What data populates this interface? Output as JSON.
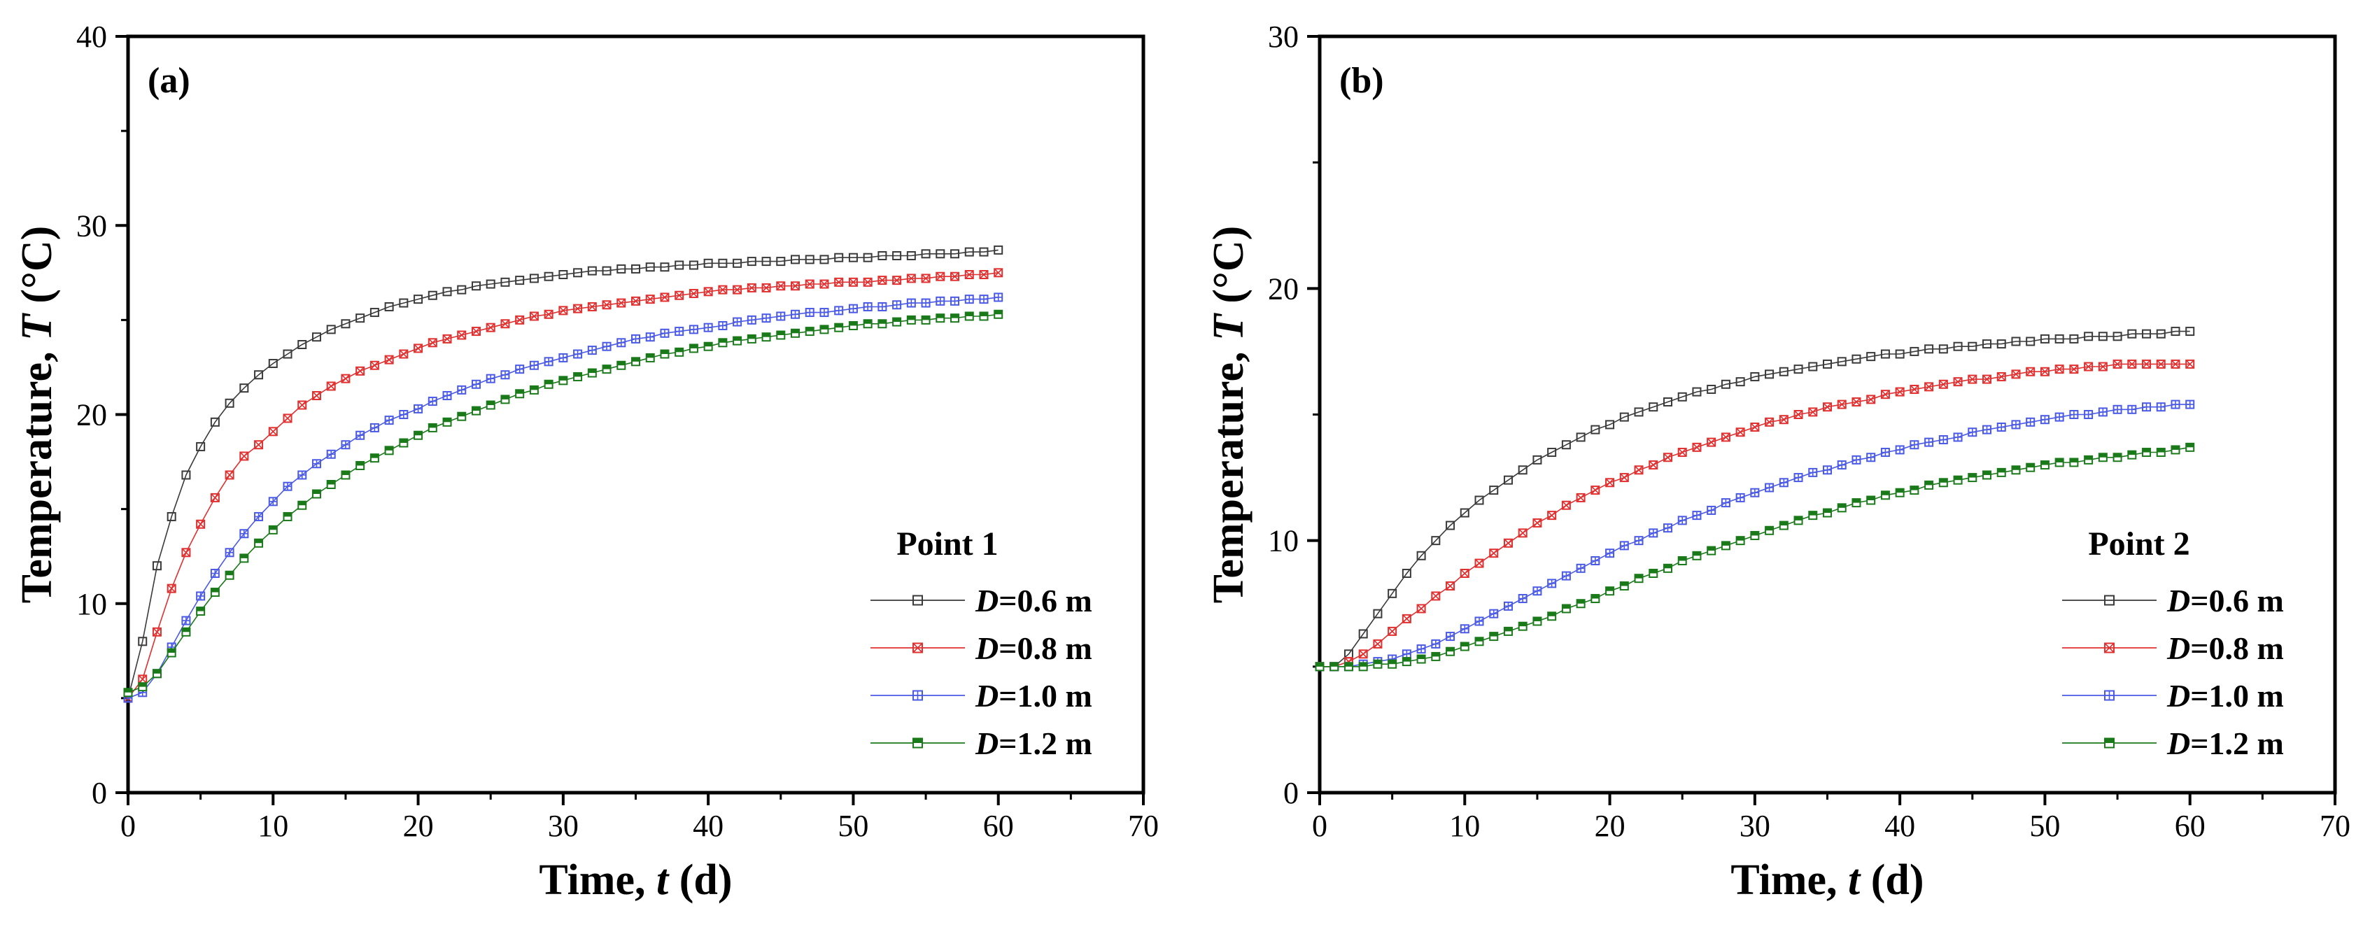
{
  "chart_data": [
    {
      "type": "line",
      "panel_label": "(a)",
      "xlabel": {
        "text": "Time, ",
        "var": "t",
        "unit": " (d)"
      },
      "ylabel": {
        "text": "Temperature, ",
        "var": "T",
        "unit": " (°C)"
      },
      "xlim": [
        0,
        70
      ],
      "ylim": [
        0,
        40
      ],
      "x_ticks": [
        0,
        10,
        20,
        30,
        40,
        50,
        60,
        70
      ],
      "y_ticks": [
        0,
        10,
        20,
        30,
        40
      ],
      "legend_title": "Point 1",
      "legend_position": "bottom-right",
      "x": [
        0,
        1,
        2,
        3,
        4,
        5,
        6,
        7,
        8,
        9,
        10,
        11,
        12,
        13,
        14,
        15,
        16,
        17,
        18,
        19,
        20,
        21,
        22,
        23,
        24,
        25,
        26,
        27,
        28,
        29,
        30,
        31,
        32,
        33,
        34,
        35,
        36,
        37,
        38,
        39,
        40,
        41,
        42,
        43,
        44,
        45,
        46,
        47,
        48,
        49,
        50,
        51,
        52,
        53,
        54,
        55,
        56,
        57,
        58,
        59,
        60
      ],
      "series": [
        {
          "name": "D=0.6 m",
          "var": "D",
          "value_text": "=0.6 m",
          "marker": "square",
          "color": "#3a3a3a",
          "values": [
            5.0,
            8.0,
            12.0,
            14.6,
            16.8,
            18.3,
            19.6,
            20.6,
            21.4,
            22.1,
            22.7,
            23.2,
            23.7,
            24.1,
            24.5,
            24.8,
            25.1,
            25.4,
            25.7,
            25.9,
            26.1,
            26.3,
            26.5,
            26.6,
            26.8,
            26.9,
            27.0,
            27.1,
            27.2,
            27.3,
            27.4,
            27.5,
            27.6,
            27.6,
            27.7,
            27.7,
            27.8,
            27.8,
            27.9,
            27.9,
            28.0,
            28.0,
            28.0,
            28.1,
            28.1,
            28.1,
            28.2,
            28.2,
            28.2,
            28.3,
            28.3,
            28.3,
            28.4,
            28.4,
            28.4,
            28.5,
            28.5,
            28.5,
            28.6,
            28.6,
            28.7
          ]
        },
        {
          "name": "D=0.8 m",
          "var": "D",
          "value_text": "=0.8 m",
          "marker": "square-x",
          "color": "#e03030",
          "values": [
            5.0,
            6.0,
            8.5,
            10.8,
            12.7,
            14.2,
            15.6,
            16.8,
            17.8,
            18.4,
            19.1,
            19.8,
            20.5,
            21.0,
            21.5,
            21.9,
            22.3,
            22.6,
            22.9,
            23.2,
            23.5,
            23.8,
            24.0,
            24.2,
            24.4,
            24.6,
            24.8,
            25.0,
            25.2,
            25.3,
            25.5,
            25.6,
            25.7,
            25.8,
            25.9,
            26.0,
            26.1,
            26.2,
            26.3,
            26.4,
            26.5,
            26.6,
            26.6,
            26.7,
            26.7,
            26.8,
            26.8,
            26.9,
            26.9,
            27.0,
            27.0,
            27.0,
            27.1,
            27.1,
            27.2,
            27.2,
            27.3,
            27.3,
            27.4,
            27.4,
            27.5
          ]
        },
        {
          "name": "D=1.0 m",
          "var": "D",
          "value_text": "=1.0 m",
          "marker": "square-plus",
          "color": "#4a5ae6",
          "values": [
            5.0,
            5.3,
            6.3,
            7.7,
            9.1,
            10.4,
            11.6,
            12.7,
            13.7,
            14.6,
            15.4,
            16.2,
            16.8,
            17.4,
            17.9,
            18.4,
            18.9,
            19.3,
            19.7,
            20.0,
            20.3,
            20.7,
            21.0,
            21.3,
            21.6,
            21.9,
            22.1,
            22.4,
            22.6,
            22.8,
            23.0,
            23.2,
            23.4,
            23.6,
            23.8,
            24.0,
            24.1,
            24.3,
            24.4,
            24.5,
            24.6,
            24.7,
            24.9,
            25.0,
            25.1,
            25.2,
            25.3,
            25.4,
            25.4,
            25.5,
            25.6,
            25.7,
            25.7,
            25.8,
            25.9,
            25.9,
            26.0,
            26.0,
            26.1,
            26.1,
            26.2
          ]
        },
        {
          "name": "D=1.2 m",
          "var": "D",
          "value_text": "=1.2 m",
          "marker": "half-square",
          "color": "#1a7a1a",
          "values": [
            5.3,
            5.6,
            6.3,
            7.4,
            8.5,
            9.6,
            10.6,
            11.5,
            12.4,
            13.2,
            13.9,
            14.6,
            15.2,
            15.8,
            16.3,
            16.8,
            17.3,
            17.7,
            18.1,
            18.5,
            18.9,
            19.3,
            19.6,
            19.9,
            20.2,
            20.5,
            20.8,
            21.1,
            21.3,
            21.6,
            21.8,
            22.0,
            22.2,
            22.4,
            22.6,
            22.8,
            23.0,
            23.2,
            23.3,
            23.5,
            23.6,
            23.8,
            23.9,
            24.0,
            24.1,
            24.2,
            24.3,
            24.4,
            24.5,
            24.6,
            24.7,
            24.8,
            24.8,
            24.9,
            25.0,
            25.0,
            25.1,
            25.1,
            25.2,
            25.2,
            25.3
          ]
        }
      ]
    },
    {
      "type": "line",
      "panel_label": "(b)",
      "xlabel": {
        "text": "Time, ",
        "var": "t",
        "unit": " (d)"
      },
      "ylabel": {
        "text": "Temperature, ",
        "var": "T",
        "unit": " (°C)"
      },
      "xlim": [
        0,
        70
      ],
      "ylim": [
        0,
        30
      ],
      "x_ticks": [
        0,
        10,
        20,
        30,
        40,
        50,
        60,
        70
      ],
      "y_ticks": [
        0,
        10,
        20,
        30
      ],
      "legend_title": "Point 2",
      "legend_position": "bottom-right",
      "x": [
        0,
        1,
        2,
        3,
        4,
        5,
        6,
        7,
        8,
        9,
        10,
        11,
        12,
        13,
        14,
        15,
        16,
        17,
        18,
        19,
        20,
        21,
        22,
        23,
        24,
        25,
        26,
        27,
        28,
        29,
        30,
        31,
        32,
        33,
        34,
        35,
        36,
        37,
        38,
        39,
        40,
        41,
        42,
        43,
        44,
        45,
        46,
        47,
        48,
        49,
        50,
        51,
        52,
        53,
        54,
        55,
        56,
        57,
        58,
        59,
        60
      ],
      "series": [
        {
          "name": "D=0.6 m",
          "var": "D",
          "value_text": "=0.6 m",
          "marker": "square",
          "color": "#3a3a3a",
          "values": [
            5.0,
            5.0,
            5.5,
            6.3,
            7.1,
            7.9,
            8.7,
            9.4,
            10.0,
            10.6,
            11.1,
            11.6,
            12.0,
            12.4,
            12.8,
            13.2,
            13.5,
            13.8,
            14.1,
            14.4,
            14.6,
            14.9,
            15.1,
            15.3,
            15.5,
            15.7,
            15.9,
            16.0,
            16.2,
            16.3,
            16.5,
            16.6,
            16.7,
            16.8,
            16.9,
            17.0,
            17.1,
            17.2,
            17.3,
            17.4,
            17.4,
            17.5,
            17.6,
            17.6,
            17.7,
            17.7,
            17.8,
            17.8,
            17.9,
            17.9,
            18.0,
            18.0,
            18.0,
            18.1,
            18.1,
            18.1,
            18.2,
            18.2,
            18.2,
            18.3,
            18.3
          ]
        },
        {
          "name": "D=0.8 m",
          "var": "D",
          "value_text": "=0.8 m",
          "marker": "square-x",
          "color": "#e03030",
          "values": [
            5.0,
            5.0,
            5.2,
            5.5,
            5.9,
            6.4,
            6.9,
            7.3,
            7.8,
            8.2,
            8.7,
            9.1,
            9.5,
            9.9,
            10.3,
            10.7,
            11.0,
            11.4,
            11.7,
            12.0,
            12.3,
            12.5,
            12.8,
            13.0,
            13.3,
            13.5,
            13.7,
            13.9,
            14.1,
            14.3,
            14.5,
            14.7,
            14.8,
            15.0,
            15.1,
            15.3,
            15.4,
            15.5,
            15.6,
            15.8,
            15.9,
            16.0,
            16.1,
            16.2,
            16.3,
            16.4,
            16.4,
            16.5,
            16.6,
            16.7,
            16.7,
            16.8,
            16.8,
            16.9,
            16.9,
            17.0,
            17.0,
            17.0,
            17.0,
            17.0,
            17.0
          ]
        },
        {
          "name": "D=1.0 m",
          "var": "D",
          "value_text": "=1.0 m",
          "marker": "square-plus",
          "color": "#4a5ae6",
          "values": [
            5.0,
            5.0,
            5.0,
            5.1,
            5.2,
            5.3,
            5.5,
            5.7,
            5.9,
            6.2,
            6.5,
            6.8,
            7.1,
            7.4,
            7.7,
            8.0,
            8.3,
            8.6,
            8.9,
            9.2,
            9.5,
            9.8,
            10.0,
            10.3,
            10.5,
            10.8,
            11.0,
            11.2,
            11.5,
            11.7,
            11.9,
            12.1,
            12.3,
            12.5,
            12.7,
            12.8,
            13.0,
            13.2,
            13.3,
            13.5,
            13.6,
            13.8,
            13.9,
            14.0,
            14.1,
            14.3,
            14.4,
            14.5,
            14.6,
            14.7,
            14.8,
            14.9,
            15.0,
            15.0,
            15.1,
            15.2,
            15.2,
            15.3,
            15.3,
            15.4,
            15.4
          ]
        },
        {
          "name": "D=1.2 m",
          "var": "D",
          "value_text": "=1.2 m",
          "marker": "half-square",
          "color": "#1a7a1a",
          "values": [
            5.0,
            5.0,
            5.0,
            5.0,
            5.1,
            5.1,
            5.2,
            5.3,
            5.4,
            5.6,
            5.8,
            6.0,
            6.2,
            6.4,
            6.6,
            6.8,
            7.0,
            7.3,
            7.5,
            7.7,
            8.0,
            8.2,
            8.5,
            8.7,
            8.9,
            9.2,
            9.4,
            9.6,
            9.8,
            10.0,
            10.2,
            10.4,
            10.6,
            10.8,
            11.0,
            11.1,
            11.3,
            11.5,
            11.6,
            11.8,
            11.9,
            12.0,
            12.2,
            12.3,
            12.4,
            12.5,
            12.6,
            12.7,
            12.8,
            12.9,
            13.0,
            13.1,
            13.1,
            13.2,
            13.3,
            13.3,
            13.4,
            13.5,
            13.5,
            13.6,
            13.7
          ]
        }
      ]
    }
  ]
}
